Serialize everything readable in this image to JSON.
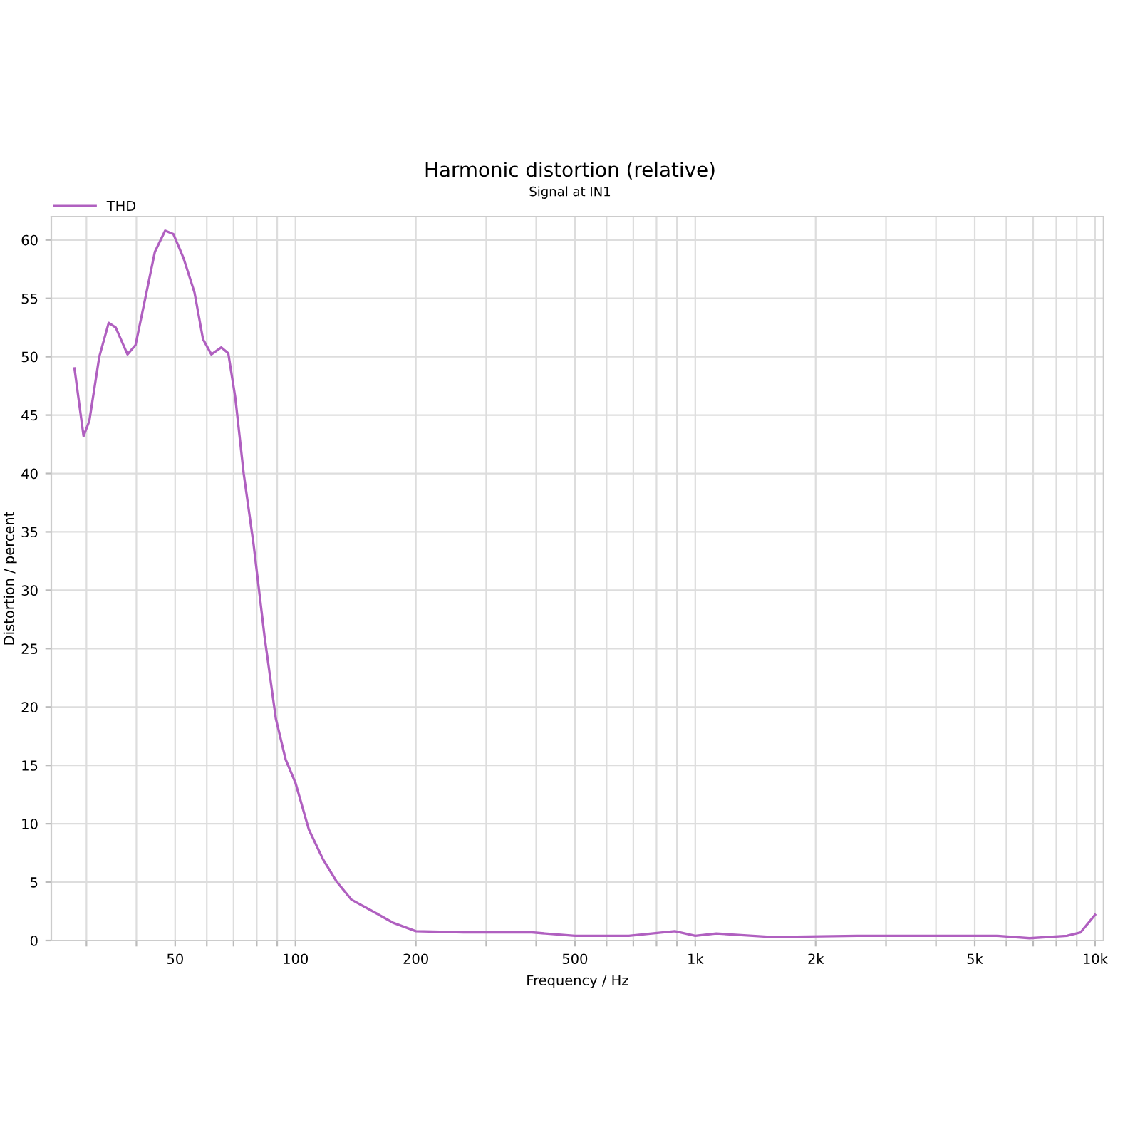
{
  "chart_data": {
    "type": "line",
    "title": "Harmonic distortion (relative)",
    "subtitle": "Signal at IN1",
    "xlabel": "Frequency / Hz",
    "ylabel": "Distortion / percent",
    "x": [
      28,
      29.5,
      30.5,
      32.3,
      34.1,
      35.5,
      38,
      39.8,
      41.8,
      44.5,
      47.2,
      49.5,
      52.4,
      55.9,
      58.7,
      61.6,
      65.2,
      67.9,
      70.7,
      74.2,
      78.5,
      83.7,
      89.3,
      94.5,
      100,
      108,
      117,
      127,
      138,
      156,
      176,
      200,
      263,
      390,
      500,
      682,
      889,
      1000,
      1129,
      1560,
      2540,
      5700,
      6860,
      8500,
      9200,
      10000
    ],
    "series": [
      {
        "name": "THD",
        "color": "#b060c0",
        "values": [
          49,
          43.2,
          44.5,
          50,
          52.9,
          52.5,
          50.2,
          51,
          54.5,
          59,
          60.8,
          60.5,
          58.5,
          55.5,
          51.5,
          50.2,
          50.8,
          50.3,
          46.5,
          40,
          34,
          26,
          19,
          15.5,
          13.5,
          9.5,
          7,
          5,
          3.5,
          2.5,
          1.5,
          0.8,
          0.7,
          0.7,
          0.4,
          0.4,
          0.8,
          0.4,
          0.6,
          0.3,
          0.4,
          0.4,
          0.2,
          0.4,
          0.7,
          2.2
        ]
      }
    ],
    "log": "x",
    "xlim": [
      24.5,
      10500
    ],
    "ylim": [
      0,
      62
    ],
    "xticks": [
      {
        "value": 30,
        "label": null
      },
      {
        "value": 40,
        "label": null
      },
      50,
      {
        "value": 60,
        "label": null
      },
      {
        "value": 70,
        "label": null
      },
      {
        "value": 80,
        "label": null
      },
      {
        "value": 90,
        "label": null
      },
      100,
      200,
      {
        "value": 300,
        "label": null
      },
      {
        "value": 400,
        "label": null
      },
      500,
      {
        "value": 600,
        "label": null
      },
      {
        "value": 700,
        "label": null
      },
      {
        "value": 800,
        "label": null
      },
      {
        "value": 900,
        "label": null
      },
      {
        "value": 1000,
        "label": "1k"
      },
      {
        "value": 2000,
        "label": "2k"
      },
      {
        "value": 3000,
        "label": null
      },
      {
        "value": 4000,
        "label": null
      },
      {
        "value": 5000,
        "label": "5k"
      },
      {
        "value": 6000,
        "label": null
      },
      {
        "value": 7000,
        "label": null
      },
      {
        "value": 8000,
        "label": null
      },
      {
        "value": 9000,
        "label": null
      },
      {
        "value": 10000,
        "label": "10k"
      }
    ],
    "yticks": [
      0,
      5,
      10,
      15,
      20,
      25,
      30,
      35,
      40,
      45,
      50,
      55,
      60
    ],
    "grid": true,
    "legend": "top left",
    "line_style": "solid",
    "marker": "none"
  }
}
